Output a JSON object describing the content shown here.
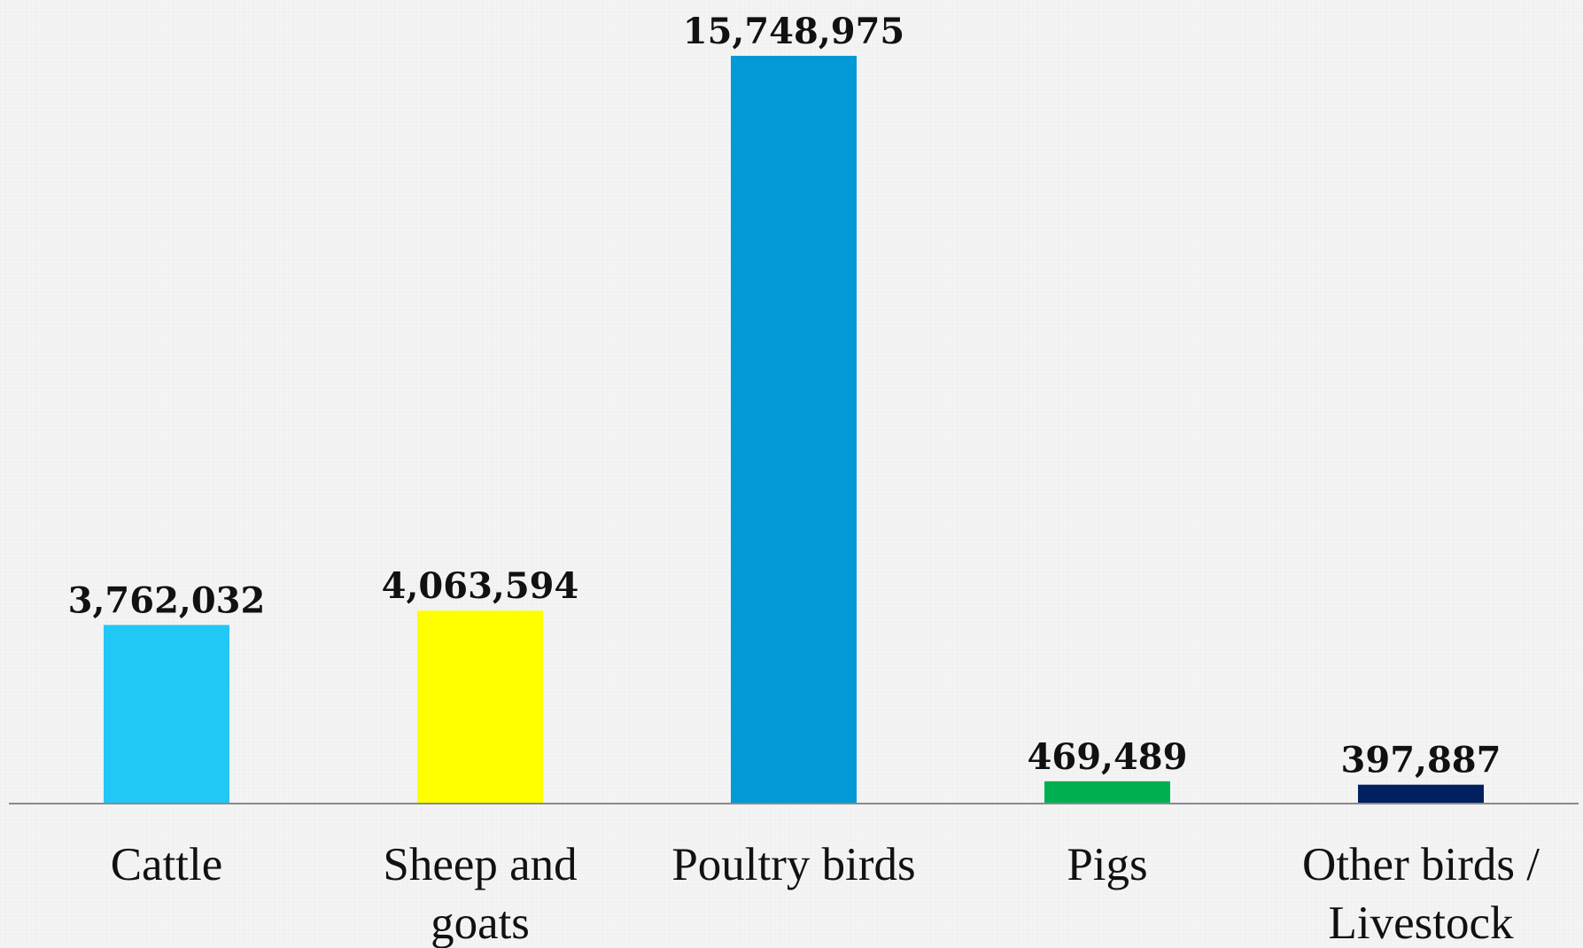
{
  "chart_data": {
    "type": "bar",
    "categories": [
      [
        "Cattle"
      ],
      [
        "Sheep and",
        "goats"
      ],
      [
        "Poultry birds"
      ],
      [
        "Pigs"
      ],
      [
        "Other birds /",
        "Livestock"
      ]
    ],
    "values": [
      3762032,
      4063594,
      15748975,
      469489,
      397887
    ],
    "data_labels": [
      "3,762,032",
      "4,063,594",
      "15,748,975",
      "469,489",
      "397,887"
    ],
    "colors": [
      "#21c7f5",
      "#ffff00",
      "#0299d6",
      "#00b050",
      "#002060"
    ],
    "title": "",
    "xlabel": "",
    "ylabel": "",
    "ylim": [
      0,
      15748975
    ],
    "grid": false,
    "legend": "none",
    "axis_color": "#8a8a8a"
  }
}
